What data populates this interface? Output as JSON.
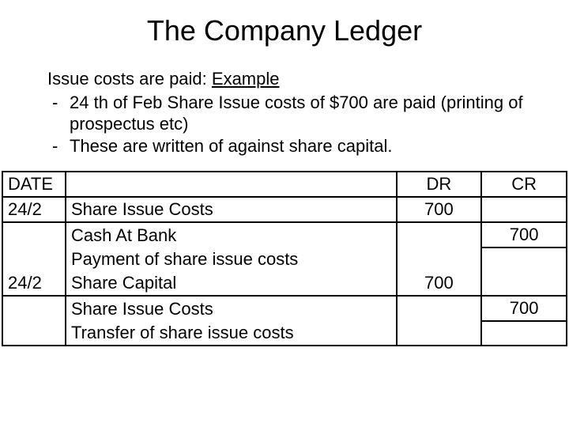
{
  "title": "The Company Ledger",
  "subhead_prefix": "Issue costs are paid: ",
  "subhead_link": "Example",
  "bullets": [
    "24 th of Feb Share Issue costs of $700 are paid (printing of prospectus etc)",
    "These are written of against share capital."
  ],
  "headers": {
    "date": "DATE",
    "dr": "DR",
    "cr": "CR"
  },
  "rows": [
    {
      "date": "24/2",
      "desc": "Share Issue Costs",
      "cls": "desc-main",
      "dr": "700",
      "cr": "",
      "cr_bt": false
    },
    {
      "date": "",
      "desc": "Cash At Bank",
      "cls": "desc-sub",
      "dr": "",
      "cr": "700",
      "cr_bt": true
    },
    {
      "date": "",
      "desc": "Payment of share issue costs",
      "cls": "desc-note",
      "dr": "",
      "cr": "",
      "cr_bt": false
    },
    {
      "date": "24/2",
      "desc": "Share Capital",
      "cls": "desc-main",
      "dr": "700",
      "cr": "",
      "cr_bt": false
    },
    {
      "date": "",
      "desc": "Share Issue Costs",
      "cls": "desc-sub",
      "dr": "",
      "cr": "700",
      "cr_bt": true
    },
    {
      "date": "",
      "desc": "Transfer of share issue costs",
      "cls": "desc-note",
      "dr": "",
      "cr": "",
      "cr_bt": false
    }
  ],
  "colors": {
    "text": "#000000",
    "bg": "#ffffff",
    "underline_link": "#000000"
  }
}
